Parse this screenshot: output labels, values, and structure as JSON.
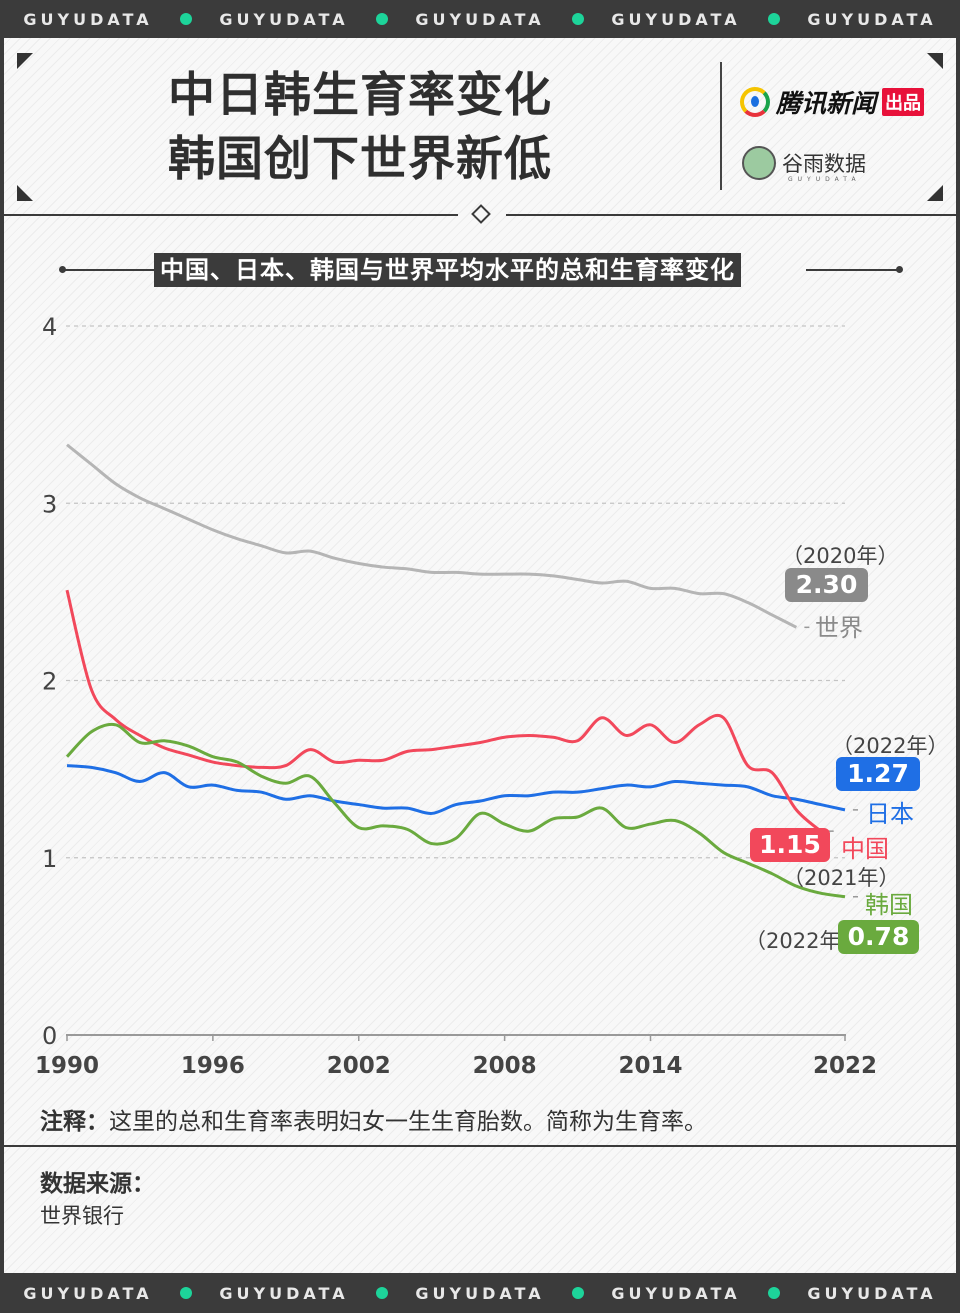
{
  "banner": {
    "text": "GUYUDATA",
    "dot_color": "#1dd49a"
  },
  "header": {
    "title_line1": "中日韩生育率变化",
    "title_line2": "韩国创下世界新低",
    "logo1_text": "腾讯新闻",
    "logo1_badge": "出品",
    "logo2_text": "谷雨数据",
    "logo2_sub": "GUYUDATA"
  },
  "chart_data": {
    "type": "line",
    "title": "中国、日本、韩国与世界平均水平的总和生育率变化",
    "xlabel": "",
    "ylabel": "",
    "ylim": [
      0,
      4
    ],
    "xlim": [
      1990,
      2022
    ],
    "yticks": [
      "0",
      "1",
      "2",
      "3",
      "4"
    ],
    "xticks": [
      "1990",
      "1996",
      "2002",
      "2008",
      "2014",
      "2022"
    ],
    "grid": true,
    "series": [
      {
        "name": "世界",
        "color": "#b5b5b5",
        "label_color": "#8a8a8a",
        "start": 1990,
        "end_label": "2.30",
        "end_year_label": "（2020年）",
        "values": [
          3.33,
          3.22,
          3.11,
          3.03,
          2.97,
          2.91,
          2.85,
          2.8,
          2.76,
          2.72,
          2.73,
          2.69,
          2.66,
          2.64,
          2.63,
          2.61,
          2.61,
          2.6,
          2.6,
          2.6,
          2.59,
          2.57,
          2.55,
          2.56,
          2.52,
          2.52,
          2.49,
          2.49,
          2.44,
          2.37,
          2.3
        ]
      },
      {
        "name": "日本",
        "color": "#1f6fe5",
        "label_color": "#1f6fe5",
        "start": 1990,
        "end_label": "1.27",
        "end_year_label": "（2022年）",
        "values": [
          1.52,
          1.51,
          1.48,
          1.43,
          1.48,
          1.4,
          1.41,
          1.38,
          1.37,
          1.33,
          1.35,
          1.32,
          1.3,
          1.28,
          1.28,
          1.25,
          1.3,
          1.32,
          1.35,
          1.35,
          1.37,
          1.37,
          1.39,
          1.41,
          1.4,
          1.43,
          1.42,
          1.41,
          1.4,
          1.35,
          1.33,
          1.3,
          1.27
        ]
      },
      {
        "name": "中国",
        "color": "#f2485b",
        "label_color": "#f2485b",
        "start": 1990,
        "end_label": "1.15",
        "end_year_label": "（2021年）",
        "values": [
          2.51,
          1.95,
          1.78,
          1.69,
          1.62,
          1.58,
          1.54,
          1.52,
          1.51,
          1.52,
          1.61,
          1.54,
          1.55,
          1.55,
          1.6,
          1.61,
          1.63,
          1.65,
          1.68,
          1.69,
          1.68,
          1.66,
          1.79,
          1.69,
          1.75,
          1.65,
          1.75,
          1.79,
          1.52,
          1.48,
          1.27,
          1.15
        ]
      },
      {
        "name": "韩国",
        "color": "#6aaa3e",
        "label_color": "#6aaa3e",
        "start": 1990,
        "end_label": "0.78",
        "end_year_label": "（2022年）",
        "values": [
          1.57,
          1.71,
          1.75,
          1.65,
          1.66,
          1.63,
          1.57,
          1.54,
          1.46,
          1.42,
          1.46,
          1.31,
          1.17,
          1.18,
          1.16,
          1.08,
          1.11,
          1.25,
          1.19,
          1.15,
          1.22,
          1.23,
          1.28,
          1.17,
          1.19,
          1.21,
          1.14,
          1.03,
          0.97,
          0.91,
          0.84,
          0.8,
          0.78
        ]
      }
    ]
  },
  "note": {
    "label": "注释：",
    "text": "这里的总和生育率表明妇女一生生育胎数。简称为生育率。"
  },
  "source": {
    "label": "数据来源：",
    "text": "世界银行"
  }
}
